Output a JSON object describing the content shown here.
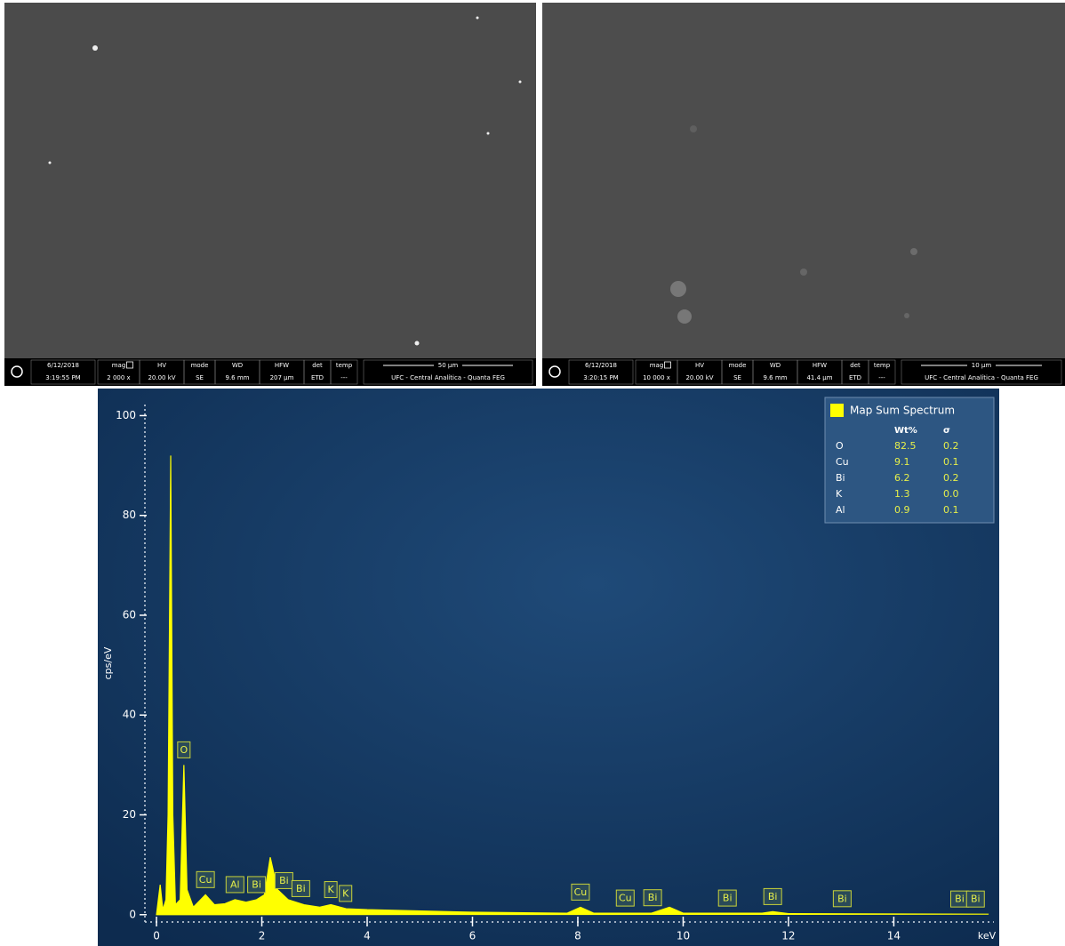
{
  "sem_images": [
    {
      "date": "6/12/2018",
      "time": "3:19:55 PM",
      "fields": [
        {
          "label": "mag",
          "value": "2 000 x"
        },
        {
          "label": "HV",
          "value": "20.00 kV"
        },
        {
          "label": "mode",
          "value": "SE"
        },
        {
          "label": "WD",
          "value": "9.6 mm"
        },
        {
          "label": "HFW",
          "value": "207 µm"
        },
        {
          "label": "det",
          "value": "ETD"
        },
        {
          "label": "temp",
          "value": "---"
        }
      ],
      "scale_bar": "50 µm",
      "facility": "UFC - Central Analítica - Quanta FEG"
    },
    {
      "date": "6/12/2018",
      "time": "3:20:15 PM",
      "fields": [
        {
          "label": "mag",
          "value": "10 000 x"
        },
        {
          "label": "HV",
          "value": "20.00 kV"
        },
        {
          "label": "mode",
          "value": "SE"
        },
        {
          "label": "WD",
          "value": "9.6 mm"
        },
        {
          "label": "HFW",
          "value": "41.4 µm"
        },
        {
          "label": "det",
          "value": "ETD"
        },
        {
          "label": "temp",
          "value": "---"
        }
      ],
      "scale_bar": "10 µm",
      "facility": "UFC - Central Analítica - Quanta FEG"
    }
  ],
  "chart_data": {
    "type": "area",
    "y_label": "cps/eV",
    "x_label": "keV",
    "xlim": [
      -0.22,
      15.9
    ],
    "ylim": [
      -2,
      104
    ],
    "xticks": [
      0,
      2,
      4,
      6,
      8,
      10,
      12,
      14
    ],
    "yticks": [
      0,
      20,
      40,
      60,
      80,
      100
    ],
    "series": [
      {
        "name": "Map Sum Spectrum",
        "color": "#ffff00",
        "x": [
          0,
          0.07,
          0.12,
          0.18,
          0.22,
          0.27,
          0.31,
          0.36,
          0.45,
          0.52,
          0.58,
          0.7,
          0.93,
          1.1,
          1.3,
          1.49,
          1.7,
          1.9,
          2.05,
          2.16,
          2.3,
          2.5,
          2.8,
          3.1,
          3.31,
          3.6,
          4,
          6,
          7.8,
          8.05,
          8.3,
          9.4,
          9.74,
          10.0,
          11.5,
          11.7,
          12,
          15.8
        ],
        "values": [
          0,
          6,
          1,
          3,
          20,
          92,
          20,
          2,
          3,
          30,
          5,
          1.5,
          4,
          2,
          2.2,
          3,
          2.5,
          3,
          4,
          11.5,
          5,
          3,
          2,
          1.5,
          2,
          1.2,
          1,
          0.5,
          0.3,
          1.5,
          0.3,
          0.3,
          1.5,
          0.3,
          0.3,
          0.6,
          0.2,
          0.1
        ]
      }
    ],
    "annotations": [
      {
        "text": "O",
        "x": 0.52
      },
      {
        "text": "Cu",
        "x": 0.93
      },
      {
        "text": "Al",
        "x": 1.49
      },
      {
        "text": "Bi",
        "x": 1.9
      },
      {
        "text": "Bi",
        "x": 2.42
      },
      {
        "text": "Bi",
        "x": 2.74
      },
      {
        "text": "K",
        "x": 3.31
      },
      {
        "text": "K",
        "x": 3.59
      },
      {
        "text": "Cu",
        "x": 8.05
      },
      {
        "text": "Cu",
        "x": 8.9
      },
      {
        "text": "Bi",
        "x": 9.42
      },
      {
        "text": "Bi",
        "x": 10.84
      },
      {
        "text": "Bi",
        "x": 11.7
      },
      {
        "text": "Bi",
        "x": 13.02
      },
      {
        "text": "Bi",
        "x": 15.25
      },
      {
        "text": "Bi",
        "x": 15.55
      }
    ],
    "legend_table": {
      "columns": [
        "Wt%",
        "σ"
      ],
      "rows": [
        [
          "O",
          "82.5",
          "0.2"
        ],
        [
          "Cu",
          "9.1",
          "0.1"
        ],
        [
          "Bi",
          "6.2",
          "0.2"
        ],
        [
          "K",
          "1.3",
          "0.0"
        ],
        [
          "Al",
          "0.9",
          "0.1"
        ]
      ]
    }
  }
}
